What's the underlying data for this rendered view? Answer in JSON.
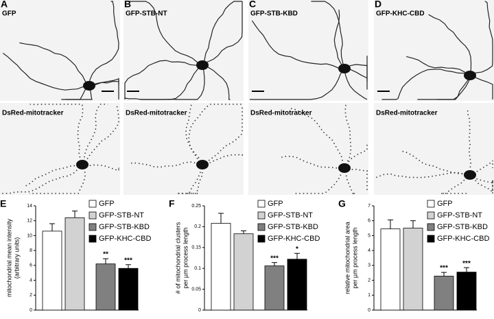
{
  "panels": [
    "A",
    "B",
    "C",
    "D",
    "E",
    "F",
    "G"
  ],
  "images": {
    "top_labels": [
      "GFP",
      "GFP-STB-NT",
      "GFP-STB-KBD",
      "GFP-KHC-CBD"
    ],
    "bottom_labels": [
      "DsRed-mitotracker",
      "DsRed-mitotracker",
      "DsRed-mitotracker",
      "DsRed-mitotracker"
    ]
  },
  "chart_data": [
    {
      "type": "bar",
      "ylabel": [
        "mitochondrial mean intensity",
        "(arbitrary units)"
      ],
      "categories": [
        "GFP",
        "GFP-STB-NT",
        "GFP-STB-KBD",
        "GFP-KHC-CBD"
      ],
      "colors": [
        "#ffffff",
        "#d2d2d2",
        "#808080",
        "#000000"
      ],
      "values": [
        10.6,
        12.4,
        6.2,
        5.6
      ],
      "errors": [
        1.0,
        0.9,
        0.7,
        0.5
      ],
      "significance": [
        null,
        null,
        "**",
        "***"
      ],
      "ylim": [
        0,
        14
      ],
      "yticks": [
        0,
        2,
        4,
        6,
        8,
        10,
        12,
        14
      ]
    },
    {
      "type": "bar",
      "ylabel": [
        "# of mitochondrial clusters",
        "per µm process length"
      ],
      "categories": [
        "GFP",
        "GFP-STB-NT",
        "GFP-STB-KBD",
        "GFP-KHC-CBD"
      ],
      "colors": [
        "#ffffff",
        "#d2d2d2",
        "#808080",
        "#000000"
      ],
      "values": [
        0.208,
        0.183,
        0.106,
        0.122
      ],
      "errors": [
        0.024,
        0.007,
        0.008,
        0.014
      ],
      "significance": [
        null,
        null,
        "***",
        "*"
      ],
      "ylim": [
        0,
        0.25
      ],
      "yticks": [
        0,
        0.05,
        0.1,
        0.15,
        0.2,
        0.25
      ]
    },
    {
      "type": "bar",
      "ylabel": [
        "relative mitochondrial area",
        "per µm process length"
      ],
      "categories": [
        "GFP",
        "GFP-STB-NT",
        "GFP-STB-KBD",
        "GFP-KHC-CBD"
      ],
      "colors": [
        "#ffffff",
        "#d2d2d2",
        "#808080",
        "#000000"
      ],
      "values": [
        5.45,
        5.5,
        2.28,
        2.55
      ],
      "errors": [
        0.6,
        0.5,
        0.25,
        0.3
      ],
      "significance": [
        null,
        null,
        "***",
        "***"
      ],
      "ylim": [
        0,
        7
      ],
      "yticks": [
        0,
        1,
        2,
        3,
        4,
        5,
        6,
        7
      ]
    }
  ]
}
